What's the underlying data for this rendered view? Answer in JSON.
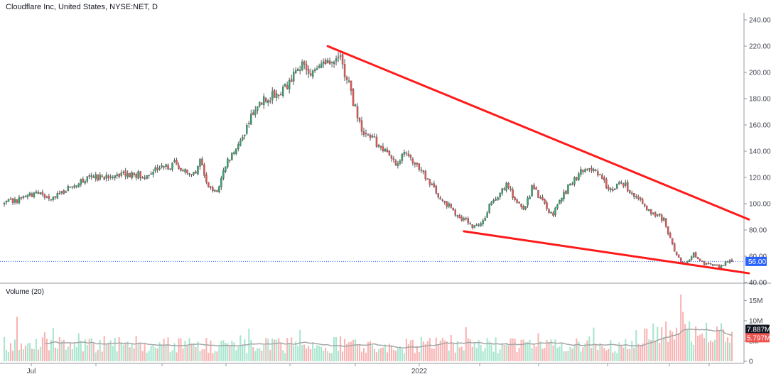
{
  "header": {
    "title": "Cloudflare Inc, United States, NYSE:NET, D"
  },
  "volume_panel": {
    "label": "Volume (20)"
  },
  "price_badge": {
    "label": "56.00",
    "color": "#2962ff"
  },
  "volume_badges": [
    {
      "label": "7.887M",
      "color": "#131722"
    },
    {
      "label": "5.797M",
      "color": "#ef5350"
    }
  ],
  "colors": {
    "up": "#26a69a",
    "up_body": "#2fa86e",
    "down": "#ef5350",
    "trendline": "#ff1a1a",
    "volume_up": "#a8e6cf",
    "volume_down": "#f8b4b4",
    "volume_ma": "#a6a6a6",
    "price_line": "#2962ff"
  },
  "chart_data": [
    {
      "type": "candlestick",
      "title": "Cloudflare Inc, United States, NYSE:NET, D",
      "ylim": [
        40,
        240
      ],
      "y_ticks": [
        "40.00",
        "60.00",
        "80.00",
        "100.00",
        "120.00",
        "140.00",
        "160.00",
        "180.00",
        "200.00",
        "220.00",
        "240.00"
      ],
      "x_ticks": [
        "Jul",
        "2022"
      ],
      "current_price": 56.0,
      "close_path": [
        [
          0,
          100
        ],
        [
          8,
          104
        ],
        [
          16,
          108
        ],
        [
          22,
          104
        ],
        [
          30,
          112
        ],
        [
          36,
          118
        ],
        [
          44,
          120
        ],
        [
          52,
          123
        ],
        [
          58,
          122
        ],
        [
          66,
          122
        ],
        [
          72,
          128
        ],
        [
          80,
          130
        ],
        [
          86,
          122
        ],
        [
          90,
          126
        ],
        [
          92,
          133
        ],
        [
          96,
          112
        ],
        [
          100,
          110
        ],
        [
          104,
          130
        ],
        [
          110,
          145
        ],
        [
          116,
          165
        ],
        [
          122,
          180
        ],
        [
          128,
          183
        ],
        [
          134,
          192
        ],
        [
          140,
          205
        ],
        [
          146,
          198
        ],
        [
          152,
          208
        ],
        [
          156,
          214
        ],
        [
          158,
          210
        ],
        [
          160,
          200
        ],
        [
          162,
          192
        ],
        [
          164,
          178
        ],
        [
          168,
          158
        ],
        [
          172,
          150
        ],
        [
          176,
          145
        ],
        [
          180,
          138
        ],
        [
          184,
          132
        ],
        [
          188,
          138
        ],
        [
          192,
          132
        ],
        [
          196,
          125
        ],
        [
          200,
          115
        ],
        [
          204,
          106
        ],
        [
          208,
          100
        ],
        [
          212,
          92
        ],
        [
          216,
          88
        ],
        [
          220,
          82
        ],
        [
          224,
          84
        ],
        [
          228,
          98
        ],
        [
          232,
          106
        ],
        [
          236,
          115
        ],
        [
          240,
          102
        ],
        [
          244,
          95
        ],
        [
          248,
          112
        ],
        [
          252,
          105
        ],
        [
          256,
          95
        ],
        [
          258,
          93
        ],
        [
          262,
          105
        ],
        [
          266,
          115
        ],
        [
          270,
          123
        ],
        [
          274,
          128
        ],
        [
          278,
          125
        ],
        [
          282,
          116
        ],
        [
          286,
          110
        ],
        [
          290,
          118
        ],
        [
          294,
          110
        ],
        [
          298,
          103
        ],
        [
          302,
          95
        ],
        [
          306,
          92
        ],
        [
          310,
          88
        ],
        [
          312,
          78
        ],
        [
          316,
          60
        ],
        [
          320,
          53
        ],
        [
          324,
          62
        ],
        [
          328,
          55
        ],
        [
          332,
          54
        ],
        [
          336,
          52
        ],
        [
          340,
          56
        ],
        [
          342,
          56
        ]
      ],
      "n_days": 343,
      "upper_trendline": [
        [
          152,
          220
        ],
        [
          350,
          88
        ]
      ],
      "lower_trendline": [
        [
          216,
          79
        ],
        [
          350,
          47
        ]
      ]
    },
    {
      "type": "bar",
      "title": "Volume (20)",
      "ylim": [
        0,
        17
      ],
      "y_ticks": [
        "0",
        "5M",
        "10M",
        "15M"
      ],
      "last_values": {
        "ma": 7.887,
        "volume": 5.797
      },
      "unit": "M"
    }
  ]
}
